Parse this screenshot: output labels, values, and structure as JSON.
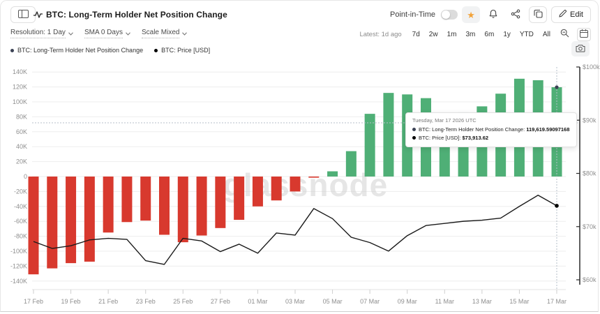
{
  "header": {
    "title": "BTC: Long-Term Holder Net Position Change",
    "point_in_time_label": "Point-in-Time",
    "edit_label": "Edit"
  },
  "toolbar": {
    "resolution_label": "Resolution: 1 Day",
    "sma_label": "SMA 0 Days",
    "scale_label": "Scale Mixed",
    "latest_label": "Latest: 1d ago",
    "ranges": [
      "7d",
      "2w",
      "1m",
      "3m",
      "6m",
      "1y",
      "YTD",
      "All"
    ]
  },
  "legend": [
    {
      "label": "BTC: Long-Term Holder Net Position Change",
      "color": "#3b4254"
    },
    {
      "label": "BTC: Price [USD]",
      "color": "#000000"
    }
  ],
  "watermark": "glassnode",
  "tooltip": {
    "title": "Tuesday, Mar 17 2026 UTC",
    "rows": [
      {
        "label": "BTC: Long-Term Holder Net Position Change: ",
        "value": "119,619.59097168",
        "color": "#3b4254"
      },
      {
        "label": "BTC: Price [USD]: ",
        "value": "$73,913.62",
        "color": "#000000"
      }
    ]
  },
  "chart_data": {
    "type": "bar+line",
    "title": "BTC: Long-Term Holder Net Position Change",
    "x": [
      "17 Feb",
      "18 Feb",
      "19 Feb",
      "20 Feb",
      "21 Feb",
      "22 Feb",
      "23 Feb",
      "24 Feb",
      "25 Feb",
      "26 Feb",
      "27 Feb",
      "28 Feb",
      "01 Mar",
      "02 Mar",
      "03 Mar",
      "04 Mar",
      "05 Mar",
      "06 Mar",
      "07 Mar",
      "08 Mar",
      "09 Mar",
      "10 Mar",
      "11 Mar",
      "12 Mar",
      "13 Mar",
      "14 Mar",
      "15 Mar",
      "16 Mar",
      "17 Mar"
    ],
    "x_tick_labels": [
      "17 Feb",
      "19 Feb",
      "21 Feb",
      "23 Feb",
      "25 Feb",
      "27 Feb",
      "01 Mar",
      "03 Mar",
      "05 Mar",
      "07 Mar",
      "09 Mar",
      "11 Mar",
      "13 Mar",
      "15 Mar",
      "17 Mar"
    ],
    "series": [
      {
        "name": "BTC: Long-Term Holder Net Position Change",
        "type": "bar",
        "axis": "left",
        "values": [
          -131000,
          -123000,
          -116000,
          -114000,
          -75000,
          -61000,
          -59000,
          -78000,
          -88000,
          -79000,
          -69000,
          -58000,
          -40000,
          -32000,
          -20000,
          -1500,
          7000,
          34000,
          84000,
          112000,
          110000,
          105000,
          85000,
          86000,
          94000,
          111000,
          131000,
          129000,
          119619.59097168
        ]
      },
      {
        "name": "BTC: Price [USD]",
        "type": "line",
        "axis": "right",
        "values": [
          67200,
          65900,
          66400,
          67500,
          67800,
          67600,
          63600,
          62900,
          67800,
          67300,
          65300,
          66700,
          65000,
          68800,
          68400,
          73400,
          71500,
          68000,
          67000,
          65400,
          68300,
          70200,
          70600,
          71000,
          71200,
          71600,
          73800,
          75900,
          73913.62
        ]
      }
    ],
    "left_axis": {
      "min": -140000,
      "max": 140000,
      "tick_step": 20000,
      "ticks": [
        "140K",
        "120K",
        "100K",
        "80K",
        "60K",
        "40K",
        "20K",
        "0",
        "-20K",
        "-40K",
        "-60K",
        "-80K",
        "-100K",
        "-120K",
        "-140K"
      ]
    },
    "right_axis": {
      "min": 60000,
      "max": 100000,
      "ticks": [
        "$100k",
        "$90k",
        "$80k",
        "$70k",
        "$60k"
      ],
      "tick_values": [
        100000,
        90000,
        80000,
        70000,
        60000
      ]
    },
    "colors": {
      "positive": "#4faf76",
      "negative": "#d8392e",
      "line": "#1a1a1a",
      "grid": "#ededed",
      "crosshair": "#b6bfc9",
      "axis_text": "#8f8f8f"
    },
    "legend_position": "top-left",
    "grid": "horizontal",
    "crosshair_index": 28,
    "crosshair_y_value_left": 72000
  }
}
